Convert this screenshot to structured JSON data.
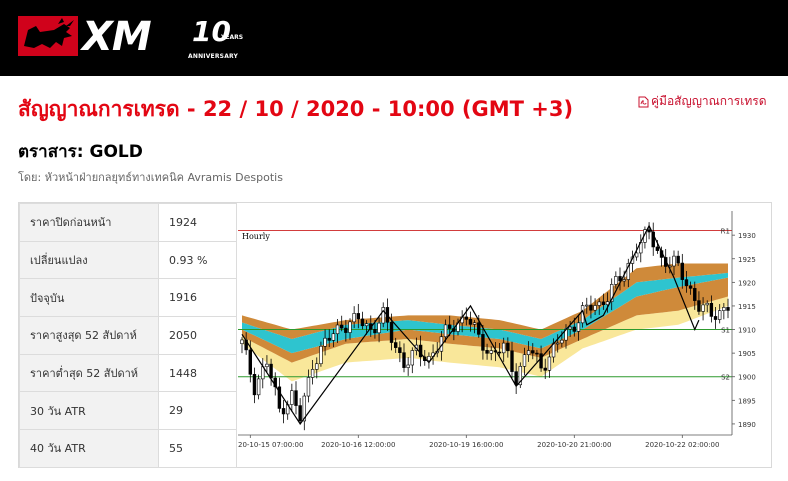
{
  "header": {
    "brand": "XM",
    "anniversary_number": "10",
    "anniversary_years": "YEARS",
    "anniversary_label": "ANNIVERSARY",
    "background_color": "#000000"
  },
  "page": {
    "title": "สัญญาณการเทรด - 22 / 10 / 2020 - 10:00 (GMT +3)",
    "manual_link": "คู่มือสัญญาณการเทรด",
    "manual_icon": "pdf-icon",
    "instrument": "ตราสาร: GOLD",
    "byline": "โดย: หัวหน้าฝ่ายกลยุทธ์ทางเทคนิค Avramis Despotis",
    "accent_color": "#e30613"
  },
  "stats": [
    {
      "label": "ราคาปิดก่อนหน้า",
      "value": "1924"
    },
    {
      "label": "เปลี่ยนแปลง",
      "value": "0.93 %"
    },
    {
      "label": "ปัจจุบัน",
      "value": "1916"
    },
    {
      "label": "ราคาสูงสุด 52 สัปดาห์",
      "value": "2050"
    },
    {
      "label": "ราคาต่ำสุด 52 สัปดาห์",
      "value": "1448"
    },
    {
      "label": "30 วัน ATR",
      "value": "29"
    },
    {
      "label": "40 วัน ATR",
      "value": "55"
    }
  ],
  "chart_data": {
    "type": "candlestick",
    "title": "Hourly",
    "y_ticks": [
      1890,
      1895,
      1900,
      1905,
      1910,
      1915,
      1920,
      1925,
      1930
    ],
    "ylim": [
      1888.5,
      1933
    ],
    "x_tick_labels": [
      "20-10-15 07:00:00",
      "2020-10-16 12:00:00",
      "2020-10-19 16:00:00",
      "2020-10-20 21:00:00",
      "2020-10-22 02:00:00"
    ],
    "x_tick_positions": [
      2,
      28,
      54,
      80,
      106
    ],
    "n_bars": 118,
    "levels": [
      {
        "label": "R1",
        "value": 1931,
        "color": "#d23c3c"
      },
      {
        "label": "S1",
        "value": 1910,
        "color": "#2e9a2e"
      },
      {
        "label": "S2",
        "value": 1900,
        "color": "#2e9a2e"
      }
    ],
    "close_anchors": [
      [
        0,
        1907
      ],
      [
        3,
        1898
      ],
      [
        6,
        1903
      ],
      [
        9,
        1893
      ],
      [
        12,
        1896
      ],
      [
        14,
        1891
      ],
      [
        17,
        1903
      ],
      [
        20,
        1907
      ],
      [
        24,
        1911
      ],
      [
        28,
        1912
      ],
      [
        31,
        1910
      ],
      [
        34,
        1913
      ],
      [
        36,
        1908
      ],
      [
        39,
        1903
      ],
      [
        42,
        1905
      ],
      [
        45,
        1904
      ],
      [
        48,
        1908
      ],
      [
        51,
        1911
      ],
      [
        54,
        1913
      ],
      [
        57,
        1908
      ],
      [
        60,
        1905
      ],
      [
        63,
        1906
      ],
      [
        66,
        1900
      ],
      [
        69,
        1906
      ],
      [
        72,
        1902
      ],
      [
        75,
        1906
      ],
      [
        79,
        1910
      ],
      [
        82,
        1914
      ],
      [
        86,
        1915
      ],
      [
        89,
        1919
      ],
      [
        92,
        1921
      ],
      [
        95,
        1928
      ],
      [
        98,
        1930
      ],
      [
        101,
        1925
      ],
      [
        104,
        1924
      ],
      [
        107,
        1920
      ],
      [
        110,
        1915
      ],
      [
        113,
        1913
      ],
      [
        117,
        1915
      ]
    ],
    "zigzag": [
      [
        0,
        1909
      ],
      [
        14,
        1890
      ],
      [
        34,
        1914
      ],
      [
        45,
        1903
      ],
      [
        55,
        1915
      ],
      [
        66,
        1898
      ],
      [
        82,
        1914
      ],
      [
        83,
        1911
      ],
      [
        87,
        1913
      ],
      [
        98,
        1932
      ],
      [
        104,
        1921
      ],
      [
        109,
        1910
      ],
      [
        110,
        1912
      ]
    ],
    "bands": {
      "colors": [
        "#f9e79a",
        "#cf8a3a",
        "#2ec4cf",
        "#cf8a3a"
      ],
      "boundaries": [
        [
          [
            0,
            1907
          ],
          [
            12,
            1899
          ],
          [
            25,
            1903
          ],
          [
            40,
            1904
          ],
          [
            50,
            1903
          ],
          [
            62,
            1902
          ],
          [
            72,
            1900
          ],
          [
            82,
            1906
          ],
          [
            95,
            1910
          ],
          [
            105,
            1911
          ],
          [
            117,
            1915
          ]
        ],
        [
          [
            0,
            1908.5
          ],
          [
            12,
            1903
          ],
          [
            25,
            1907
          ],
          [
            40,
            1908
          ],
          [
            50,
            1907
          ],
          [
            62,
            1906
          ],
          [
            72,
            1904
          ],
          [
            82,
            1908
          ],
          [
            95,
            1913
          ],
          [
            105,
            1914
          ],
          [
            117,
            1917
          ]
        ],
        [
          [
            0,
            1910
          ],
          [
            12,
            1905
          ],
          [
            25,
            1908
          ],
          [
            40,
            1910
          ],
          [
            50,
            1909
          ],
          [
            62,
            1908
          ],
          [
            72,
            1906
          ],
          [
            82,
            1910
          ],
          [
            95,
            1917
          ],
          [
            105,
            1919
          ],
          [
            117,
            1921
          ]
        ],
        [
          [
            0,
            1911.5
          ],
          [
            12,
            1908
          ],
          [
            25,
            1911
          ],
          [
            40,
            1912
          ],
          [
            50,
            1911
          ],
          [
            62,
            1910
          ],
          [
            72,
            1908
          ],
          [
            82,
            1912
          ],
          [
            95,
            1920
          ],
          [
            105,
            1921
          ],
          [
            117,
            1922
          ]
        ],
        [
          [
            0,
            1913
          ],
          [
            12,
            1910
          ],
          [
            25,
            1912
          ],
          [
            40,
            1913
          ],
          [
            50,
            1913
          ],
          [
            62,
            1912
          ],
          [
            72,
            1910
          ],
          [
            82,
            1914
          ],
          [
            95,
            1923
          ],
          [
            105,
            1924
          ],
          [
            117,
            1924
          ]
        ]
      ]
    }
  }
}
